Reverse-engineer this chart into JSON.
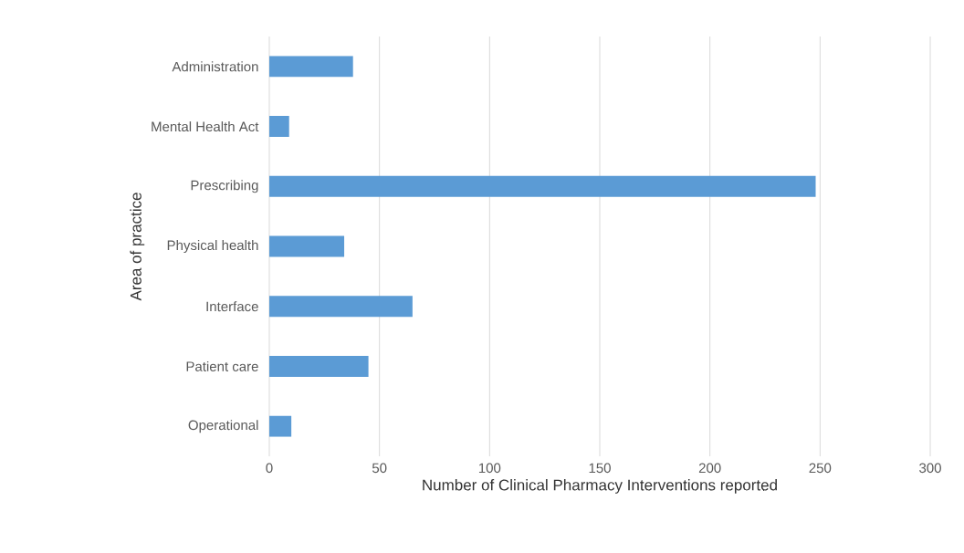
{
  "chart_data": {
    "type": "bar",
    "orientation": "horizontal",
    "xlabel": "Number of Clinical Pharmacy Interventions reported",
    "ylabel": "Area of practice",
    "categories": [
      "Administration",
      "Mental Health Act",
      "Prescribing",
      "Physical health",
      "Interface",
      "Patient care",
      "Operational"
    ],
    "values": [
      38,
      9,
      248,
      34,
      65,
      45,
      10
    ],
    "color": "#5b9bd5",
    "xlim": [
      0,
      300
    ],
    "xticks": [
      0,
      50,
      100,
      150,
      200,
      250,
      300
    ],
    "grid": "x"
  }
}
